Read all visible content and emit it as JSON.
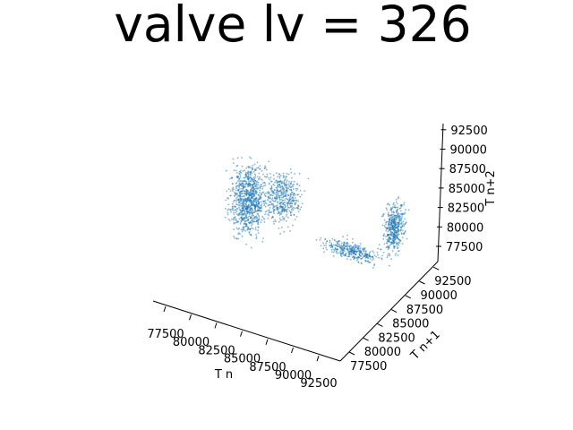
{
  "chart_data": {
    "type": "scatter",
    "projection": "3d",
    "title": "valve lv = 326",
    "xlabel": "T n",
    "ylabel": "T n+1",
    "zlabel": "T n+2",
    "xlim": [
      75000,
      92500
    ],
    "ylim": [
      75000,
      92500
    ],
    "zlim": [
      75000,
      92500
    ],
    "x_ticks": [
      "77500",
      "80000",
      "82500",
      "85000",
      "87500",
      "90000",
      "92500"
    ],
    "y_ticks": [
      "77500",
      "80000",
      "82500",
      "85000",
      "87500",
      "90000",
      "92500"
    ],
    "z_ticks": [
      "77500",
      "80000",
      "82500",
      "85000",
      "87500",
      "90000",
      "92500"
    ],
    "grid": false,
    "marker_color": "#1f77b4",
    "clusters": [
      {
        "x_range": [
          79000,
          83000
        ],
        "y_range": [
          79000,
          83000
        ],
        "z_range": [
          78000,
          89000
        ],
        "count": 900
      },
      {
        "x_range": [
          80500,
          84500
        ],
        "y_range": [
          83000,
          86000
        ],
        "z_range": [
          78000,
          86000
        ],
        "count": 450
      },
      {
        "x_range": [
          85000,
          92000
        ],
        "y_range": [
          84000,
          86500
        ],
        "z_range": [
          77000,
          79000
        ],
        "count": 350
      },
      {
        "x_range": [
          90500,
          92500
        ],
        "y_range": [
          85000,
          88500
        ],
        "z_range": [
          77000,
          85000
        ],
        "count": 450
      }
    ]
  }
}
